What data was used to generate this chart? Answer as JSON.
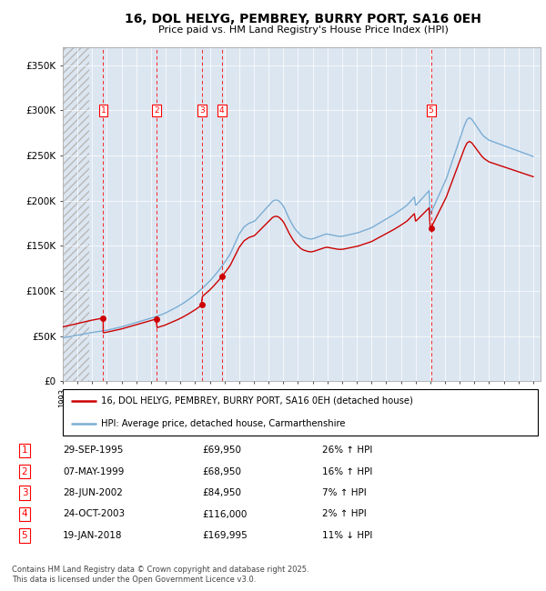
{
  "title_line1": "16, DOL HELYG, PEMBREY, BURRY PORT, SA16 0EH",
  "title_line2": "Price paid vs. HM Land Registry's House Price Index (HPI)",
  "bg_color": "#dce6f1",
  "sale_color": "#cc0000",
  "hpi_color": "#7aadd4",
  "legend_line1": "16, DOL HELYG, PEMBREY, BURRY PORT, SA16 0EH (detached house)",
  "legend_line2": "HPI: Average price, detached house, Carmarthenshire",
  "footer_text": "Contains HM Land Registry data © Crown copyright and database right 2025.\nThis data is licensed under the Open Government Licence v3.0.",
  "ylim": [
    0,
    370000
  ],
  "yticks": [
    0,
    50000,
    100000,
    150000,
    200000,
    250000,
    300000,
    350000
  ],
  "ytick_labels": [
    "£0",
    "£50K",
    "£100K",
    "£150K",
    "£200K",
    "£250K",
    "£300K",
    "£350K"
  ],
  "xmin": 1993,
  "xmax": 2025.5,
  "sales": [
    {
      "num": 1,
      "date_year": 1995.75,
      "price": 69950,
      "date_str": "29-SEP-1995",
      "price_str": "£69,950",
      "pct_str": "26% ↑ HPI"
    },
    {
      "num": 2,
      "date_year": 1999.36,
      "price": 68950,
      "date_str": "07-MAY-1999",
      "price_str": "£68,950",
      "pct_str": "16% ↑ HPI"
    },
    {
      "num": 3,
      "date_year": 2002.49,
      "price": 84950,
      "date_str": "28-JUN-2002",
      "price_str": "£84,950",
      "pct_str": "7% ↑ HPI"
    },
    {
      "num": 4,
      "date_year": 2003.82,
      "price": 116000,
      "date_str": "24-OCT-2003",
      "price_str": "£116,000",
      "pct_str": "2% ↑ HPI"
    },
    {
      "num": 5,
      "date_year": 2018.05,
      "price": 169995,
      "date_str": "19-JAN-2018",
      "price_str": "£169,995",
      "pct_str": "11% ↓ HPI"
    }
  ],
  "hpi_years": [
    1993.0,
    1993.083,
    1993.167,
    1993.25,
    1993.333,
    1993.417,
    1993.5,
    1993.583,
    1993.667,
    1993.75,
    1993.833,
    1993.917,
    1994.0,
    1994.083,
    1994.167,
    1994.25,
    1994.333,
    1994.417,
    1994.5,
    1994.583,
    1994.667,
    1994.75,
    1994.833,
    1994.917,
    1995.0,
    1995.083,
    1995.167,
    1995.25,
    1995.333,
    1995.417,
    1995.5,
    1995.583,
    1995.667,
    1995.75,
    1995.833,
    1995.917,
    1996.0,
    1996.083,
    1996.167,
    1996.25,
    1996.333,
    1996.417,
    1996.5,
    1996.583,
    1996.667,
    1996.75,
    1996.833,
    1996.917,
    1997.0,
    1997.083,
    1997.167,
    1997.25,
    1997.333,
    1997.417,
    1997.5,
    1997.583,
    1997.667,
    1997.75,
    1997.833,
    1997.917,
    1998.0,
    1998.083,
    1998.167,
    1998.25,
    1998.333,
    1998.417,
    1998.5,
    1998.583,
    1998.667,
    1998.75,
    1998.833,
    1998.917,
    1999.0,
    1999.083,
    1999.167,
    1999.25,
    1999.333,
    1999.417,
    1999.5,
    1999.583,
    1999.667,
    1999.75,
    1999.833,
    1999.917,
    2000.0,
    2000.083,
    2000.167,
    2000.25,
    2000.333,
    2000.417,
    2000.5,
    2000.583,
    2000.667,
    2000.75,
    2000.833,
    2000.917,
    2001.0,
    2001.083,
    2001.167,
    2001.25,
    2001.333,
    2001.417,
    2001.5,
    2001.583,
    2001.667,
    2001.75,
    2001.833,
    2001.917,
    2002.0,
    2002.083,
    2002.167,
    2002.25,
    2002.333,
    2002.417,
    2002.5,
    2002.583,
    2002.667,
    2002.75,
    2002.833,
    2002.917,
    2003.0,
    2003.083,
    2003.167,
    2003.25,
    2003.333,
    2003.417,
    2003.5,
    2003.583,
    2003.667,
    2003.75,
    2003.833,
    2003.917,
    2004.0,
    2004.083,
    2004.167,
    2004.25,
    2004.333,
    2004.417,
    2004.5,
    2004.583,
    2004.667,
    2004.75,
    2004.833,
    2004.917,
    2005.0,
    2005.083,
    2005.167,
    2005.25,
    2005.333,
    2005.417,
    2005.5,
    2005.583,
    2005.667,
    2005.75,
    2005.833,
    2005.917,
    2006.0,
    2006.083,
    2006.167,
    2006.25,
    2006.333,
    2006.417,
    2006.5,
    2006.583,
    2006.667,
    2006.75,
    2006.833,
    2006.917,
    2007.0,
    2007.083,
    2007.167,
    2007.25,
    2007.333,
    2007.417,
    2007.5,
    2007.583,
    2007.667,
    2007.75,
    2007.833,
    2007.917,
    2008.0,
    2008.083,
    2008.167,
    2008.25,
    2008.333,
    2008.417,
    2008.5,
    2008.583,
    2008.667,
    2008.75,
    2008.833,
    2008.917,
    2009.0,
    2009.083,
    2009.167,
    2009.25,
    2009.333,
    2009.417,
    2009.5,
    2009.583,
    2009.667,
    2009.75,
    2009.833,
    2009.917,
    2010.0,
    2010.083,
    2010.167,
    2010.25,
    2010.333,
    2010.417,
    2010.5,
    2010.583,
    2010.667,
    2010.75,
    2010.833,
    2010.917,
    2011.0,
    2011.083,
    2011.167,
    2011.25,
    2011.333,
    2011.417,
    2011.5,
    2011.583,
    2011.667,
    2011.75,
    2011.833,
    2011.917,
    2012.0,
    2012.083,
    2012.167,
    2012.25,
    2012.333,
    2012.417,
    2012.5,
    2012.583,
    2012.667,
    2012.75,
    2012.833,
    2012.917,
    2013.0,
    2013.083,
    2013.167,
    2013.25,
    2013.333,
    2013.417,
    2013.5,
    2013.583,
    2013.667,
    2013.75,
    2013.833,
    2013.917,
    2014.0,
    2014.083,
    2014.167,
    2014.25,
    2014.333,
    2014.417,
    2014.5,
    2014.583,
    2014.667,
    2014.75,
    2014.833,
    2014.917,
    2015.0,
    2015.083,
    2015.167,
    2015.25,
    2015.333,
    2015.417,
    2015.5,
    2015.583,
    2015.667,
    2015.75,
    2015.833,
    2015.917,
    2016.0,
    2016.083,
    2016.167,
    2016.25,
    2016.333,
    2016.417,
    2016.5,
    2016.583,
    2016.667,
    2016.75,
    2016.833,
    2016.917,
    2017.0,
    2017.083,
    2017.167,
    2017.25,
    2017.333,
    2017.417,
    2017.5,
    2017.583,
    2017.667,
    2017.75,
    2017.833,
    2017.917,
    2018.0,
    2018.083,
    2018.167,
    2018.25,
    2018.333,
    2018.417,
    2018.5,
    2018.583,
    2018.667,
    2018.75,
    2018.833,
    2018.917,
    2019.0,
    2019.083,
    2019.167,
    2019.25,
    2019.333,
    2019.417,
    2019.5,
    2019.583,
    2019.667,
    2019.75,
    2019.833,
    2019.917,
    2020.0,
    2020.083,
    2020.167,
    2020.25,
    2020.333,
    2020.417,
    2020.5,
    2020.583,
    2020.667,
    2020.75,
    2020.833,
    2020.917,
    2021.0,
    2021.083,
    2021.167,
    2021.25,
    2021.333,
    2021.417,
    2021.5,
    2021.583,
    2021.667,
    2021.75,
    2021.833,
    2021.917,
    2022.0,
    2022.083,
    2022.167,
    2022.25,
    2022.333,
    2022.417,
    2022.5,
    2022.583,
    2022.667,
    2022.75,
    2022.833,
    2022.917,
    2023.0,
    2023.083,
    2023.167,
    2023.25,
    2023.333,
    2023.417,
    2023.5,
    2023.583,
    2023.667,
    2023.75,
    2023.833,
    2023.917,
    2024.0,
    2024.083,
    2024.167,
    2024.25,
    2024.333,
    2024.417,
    2024.5,
    2024.583,
    2024.667,
    2024.75,
    2024.833,
    2024.917,
    2025.0
  ],
  "hpi_values": [
    48000,
    48200,
    48500,
    48800,
    49000,
    49200,
    49500,
    49700,
    50000,
    50200,
    50500,
    50800,
    51000,
    51200,
    51500,
    51800,
    52000,
    52200,
    52500,
    52800,
    53000,
    53200,
    53500,
    53800,
    54000,
    54200,
    54400,
    54600,
    54800,
    55000,
    55200,
    55400,
    55600,
    55800,
    56000,
    56200,
    56500,
    56800,
    57100,
    57400,
    57700,
    58000,
    58300,
    58600,
    58900,
    59200,
    59500,
    59800,
    60200,
    60600,
    61000,
    61400,
    61800,
    62200,
    62600,
    63000,
    63400,
    63800,
    64200,
    64600,
    65000,
    65400,
    65800,
    66200,
    66600,
    67000,
    67400,
    67800,
    68200,
    68600,
    69000,
    69400,
    69800,
    70200,
    70600,
    71000,
    71500,
    72000,
    72500,
    73000,
    73500,
    74000,
    74500,
    75000,
    75700,
    76400,
    77100,
    77800,
    78500,
    79200,
    79900,
    80600,
    81300,
    82000,
    82800,
    83600,
    84400,
    85200,
    86100,
    87000,
    87900,
    88800,
    89800,
    90800,
    91800,
    92800,
    93800,
    94800,
    95900,
    97000,
    98200,
    99400,
    100600,
    101800,
    103100,
    104400,
    105700,
    107000,
    108300,
    109600,
    111000,
    112500,
    114000,
    115600,
    117200,
    118800,
    120500,
    122200,
    124000,
    125800,
    127600,
    129500,
    131500,
    133500,
    135500,
    137500,
    139500,
    142000,
    145000,
    148000,
    151000,
    154000,
    157000,
    160000,
    163000,
    165000,
    167000,
    169000,
    171000,
    172000,
    173000,
    174000,
    175000,
    175500,
    176000,
    176500,
    177000,
    178000,
    179500,
    181000,
    182500,
    184000,
    185500,
    187000,
    188500,
    190000,
    191500,
    193000,
    194500,
    196000,
    197500,
    199000,
    200000,
    200500,
    200800,
    200500,
    200000,
    199000,
    197500,
    196000,
    194000,
    191500,
    188500,
    185500,
    182500,
    179500,
    177000,
    174500,
    172000,
    170000,
    168000,
    166500,
    165000,
    163500,
    162000,
    161000,
    160000,
    159500,
    159000,
    158500,
    158000,
    157800,
    157500,
    157500,
    157800,
    158200,
    158700,
    159200,
    159700,
    160200,
    160700,
    161200,
    161700,
    162200,
    162700,
    163000,
    163000,
    162800,
    162500,
    162200,
    161900,
    161600,
    161300,
    161000,
    160800,
    160600,
    160500,
    160500,
    160600,
    160800,
    161100,
    161400,
    161700,
    162000,
    162300,
    162600,
    162900,
    163200,
    163500,
    163800,
    164100,
    164500,
    165000,
    165500,
    166000,
    166500,
    167000,
    167500,
    168000,
    168500,
    169000,
    169500,
    170000,
    170800,
    171600,
    172400,
    173200,
    174000,
    174800,
    175600,
    176400,
    177200,
    178000,
    178800,
    179600,
    180400,
    181200,
    182000,
    182800,
    183600,
    184500,
    185400,
    186300,
    187200,
    188100,
    189000,
    190000,
    191000,
    192000,
    193000,
    194000,
    195000,
    196500,
    198000,
    199500,
    201000,
    202500,
    204000,
    195000,
    196000,
    197500,
    199000,
    200500,
    202000,
    203500,
    205000,
    206500,
    208000,
    209500,
    211000,
    185000,
    188000,
    191000,
    194000,
    197000,
    200000,
    203000,
    206000,
    209000,
    212000,
    215000,
    218000,
    221000,
    224000,
    228000,
    232000,
    236000,
    240000,
    244000,
    248000,
    252000,
    256000,
    260000,
    264000,
    268000,
    272000,
    276000,
    280000,
    284000,
    287000,
    290000,
    291000,
    292000,
    291000,
    290000,
    288000,
    286000,
    284000,
    282000,
    280000,
    278000,
    276000,
    274000,
    272500,
    271000,
    270000,
    269000,
    268000,
    267000,
    266500,
    266000,
    265500,
    265000,
    264500,
    264000,
    263500,
    263000,
    262500,
    262000,
    261500,
    261000,
    260500,
    260000,
    259500,
    259000,
    258500,
    258000,
    257500,
    257000,
    256500,
    256000,
    255500,
    255000,
    254500,
    254000,
    253500,
    253000,
    252500,
    252000,
    251500,
    251000,
    250500,
    250000,
    249500,
    249000
  ]
}
